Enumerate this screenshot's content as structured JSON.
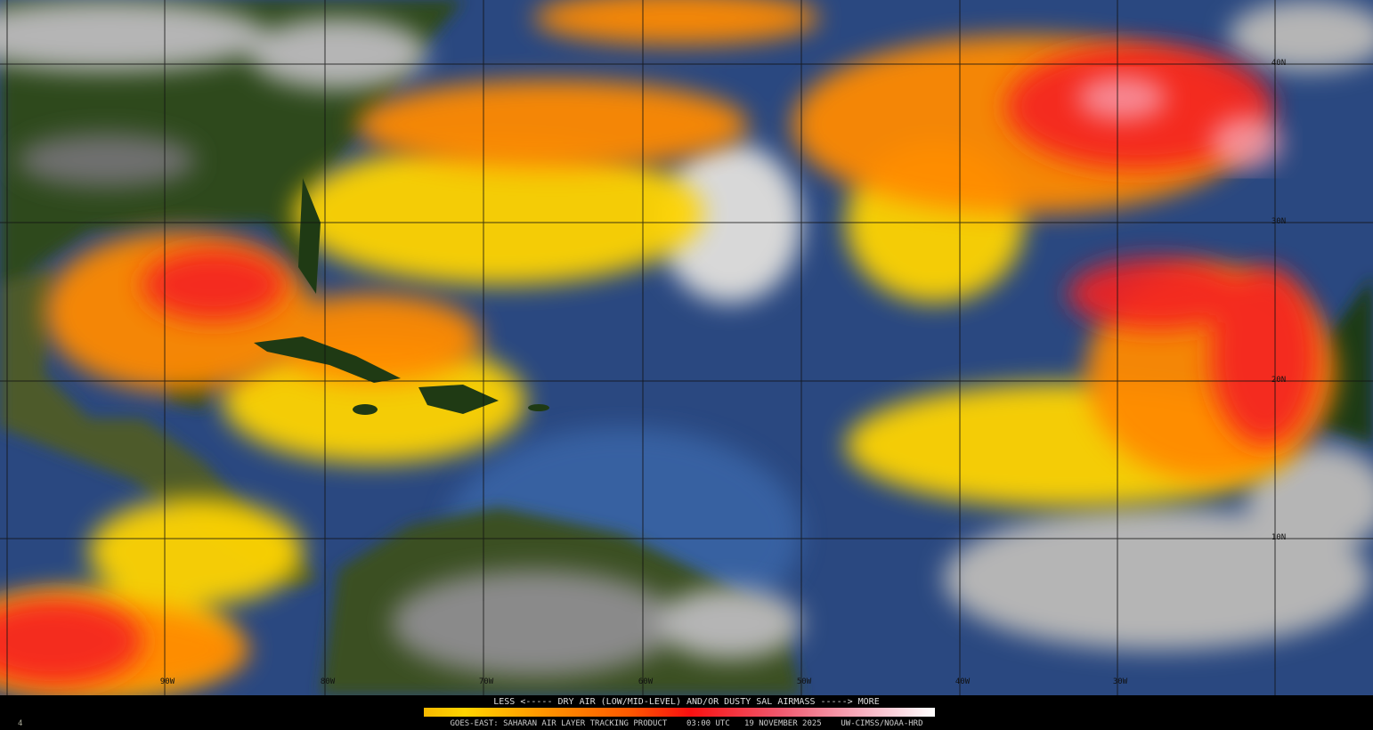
{
  "product": {
    "legend_title": "LESS <----- DRY AIR (LOW/MID-LEVEL) AND/OR DUSTY SAL AIRMASS -----> MORE",
    "footer": "GOES-EAST: SAHARAN AIR LAYER TRACKING PRODUCT    03:00 UTC   19 NOVEMBER 2025    UW-CIMSS/NOAA-HRD",
    "corner_mark": "4",
    "colorbar_colors": [
      "#f7b900",
      "#ffd400",
      "#ff9a00",
      "#ff5a00",
      "#f81010",
      "#f05a70",
      "#f8b0c0",
      "#ffffff"
    ]
  },
  "grid": {
    "latitude_labels": [
      "40N",
      "30N",
      "20N",
      "10N"
    ],
    "longitude_labels": [
      "90W",
      "80W",
      "70W",
      "60W",
      "50W",
      "40W",
      "30W"
    ]
  },
  "colors": {
    "ocean": "#2b4a80",
    "land": "#2f4a1e",
    "cloud": "#b8b8b8",
    "dry_air_low": "#ffd400",
    "dry_air_high": "#f81010"
  }
}
